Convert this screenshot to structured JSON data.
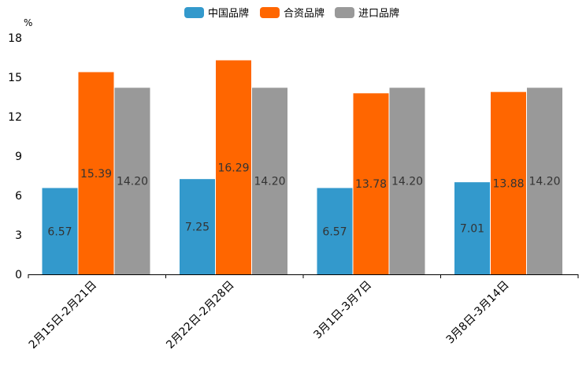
{
  "chart_data": {
    "type": "bar",
    "title": "",
    "xlabel": "",
    "ylabel": "%",
    "ylim": [
      0,
      18
    ],
    "yticks": [
      0,
      3,
      6,
      9,
      12,
      15,
      18
    ],
    "legend_position": "top-center",
    "categories": [
      "2月15日-2月21日",
      "2月22日-2月28日",
      "3月1日-3月7日",
      "3月8日-3月14日"
    ],
    "series": [
      {
        "name": "中国品牌",
        "color": "#3399cc",
        "values": [
          6.57,
          7.25,
          6.57,
          7.01
        ],
        "labels": [
          "6.57",
          "7.25",
          "6.57",
          "7.01"
        ]
      },
      {
        "name": "合资品牌",
        "color": "#ff6600",
        "values": [
          15.39,
          16.29,
          13.78,
          13.88
        ],
        "labels": [
          "15.39",
          "16.29",
          "13.78",
          "13.88"
        ]
      },
      {
        "name": "进口品牌",
        "color": "#999999",
        "values": [
          14.2,
          14.2,
          14.2,
          14.2
        ],
        "labels": [
          "14.20",
          "14.20",
          "14.20",
          "14.20"
        ]
      }
    ]
  }
}
